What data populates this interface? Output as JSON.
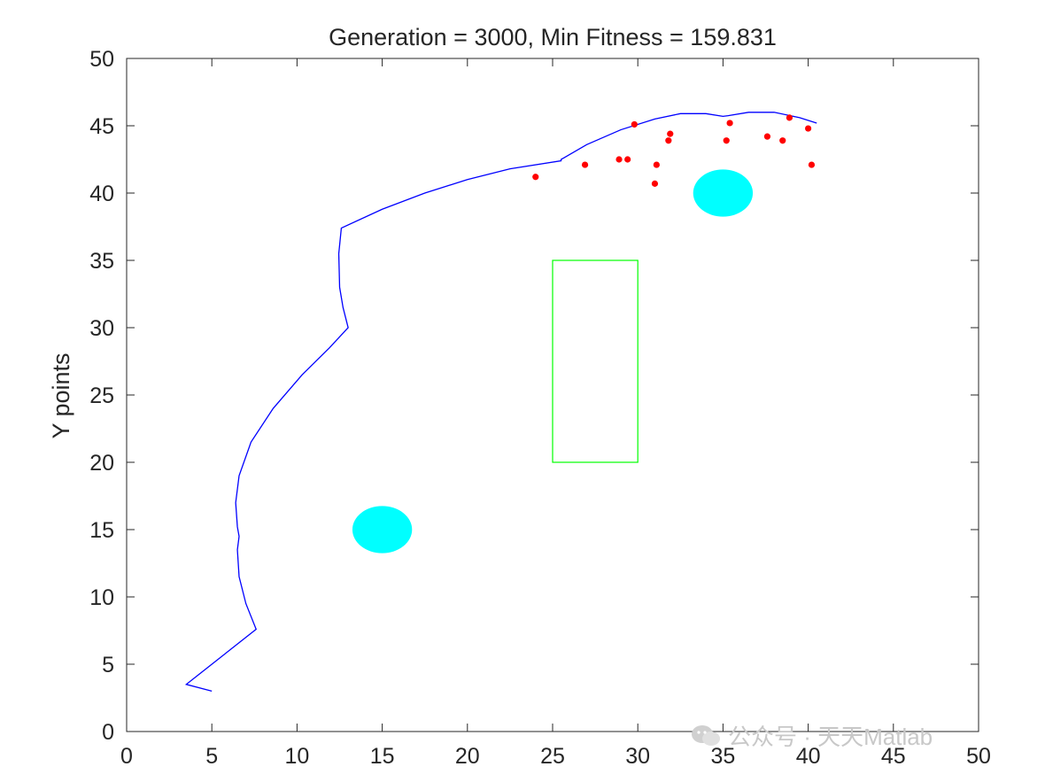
{
  "chart_data": {
    "type": "line",
    "title": "Generation = 3000, Min Fitness = 159.831",
    "xlabel": "",
    "ylabel": "Y points",
    "xlim": [
      0,
      50
    ],
    "ylim": [
      0,
      50
    ],
    "xticks": [
      0,
      5,
      10,
      15,
      20,
      25,
      30,
      35,
      40,
      45,
      50
    ],
    "yticks": [
      0,
      5,
      10,
      15,
      20,
      25,
      30,
      35,
      40,
      45,
      50
    ],
    "grid": false,
    "path": {
      "color": "#0000ff",
      "points": [
        [
          5,
          3
        ],
        [
          3.5,
          3.5
        ],
        [
          7.6,
          7.6
        ],
        [
          7.0,
          9.5
        ],
        [
          6.6,
          11.5
        ],
        [
          6.5,
          13.5
        ],
        [
          6.6,
          14.5
        ],
        [
          6.5,
          15.2
        ],
        [
          6.4,
          17.0
        ],
        [
          6.6,
          19.0
        ],
        [
          7.3,
          21.5
        ],
        [
          8.6,
          24.0
        ],
        [
          10.3,
          26.5
        ],
        [
          11.9,
          28.5
        ],
        [
          13.0,
          30.0
        ],
        [
          12.7,
          31.5
        ],
        [
          12.5,
          33.0
        ],
        [
          12.45,
          35.5
        ],
        [
          12.6,
          37.4
        ],
        [
          15.0,
          38.8
        ],
        [
          17.5,
          40.0
        ],
        [
          20.0,
          41.0
        ],
        [
          22.5,
          41.8
        ],
        [
          25.5,
          42.4
        ],
        [
          25.5,
          42.5
        ],
        [
          27.0,
          43.6
        ],
        [
          29.0,
          44.7
        ],
        [
          31.0,
          45.5
        ],
        [
          32.5,
          45.9
        ],
        [
          34.0,
          45.9
        ],
        [
          35.0,
          45.7
        ],
        [
          35.3,
          45.75
        ],
        [
          36.5,
          46.0
        ],
        [
          38.0,
          46.0
        ],
        [
          39.5,
          45.6
        ],
        [
          40.5,
          45.2
        ]
      ]
    },
    "points": {
      "color": "#ff0000",
      "values": [
        [
          24.0,
          41.2
        ],
        [
          26.9,
          42.1
        ],
        [
          28.9,
          42.5
        ],
        [
          29.4,
          42.5
        ],
        [
          29.8,
          45.1
        ],
        [
          31.0,
          40.7
        ],
        [
          31.1,
          42.1
        ],
        [
          31.8,
          43.9
        ],
        [
          31.9,
          44.4
        ],
        [
          35.2,
          43.9
        ],
        [
          35.4,
          45.2
        ],
        [
          37.6,
          44.2
        ],
        [
          38.5,
          43.9
        ],
        [
          38.9,
          45.6
        ],
        [
          40.0,
          44.8
        ],
        [
          40.2,
          42.1
        ]
      ]
    },
    "obstacles": {
      "circles": [
        {
          "cx": 15,
          "cy": 15,
          "r": 1.75,
          "color": "#00ffff"
        },
        {
          "cx": 35,
          "cy": 40,
          "r": 1.75,
          "color": "#00ffff"
        }
      ],
      "rectangle": {
        "x0": 25,
        "y0": 20,
        "x1": 30,
        "y1": 35,
        "color": "#00ff00"
      }
    }
  },
  "watermark": {
    "icon": "wechat-icon",
    "text": "公众号 · 天天Matlab"
  }
}
